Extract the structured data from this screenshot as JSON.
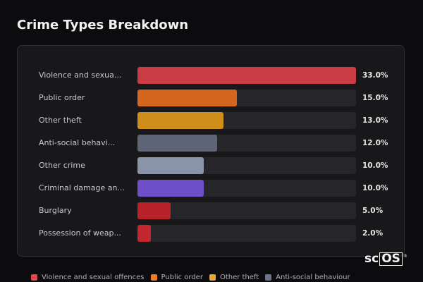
{
  "title": "Crime Types Breakdown",
  "logo_text": "scOS",
  "logo_mark": "®",
  "chart_data": {
    "type": "bar",
    "orientation": "horizontal",
    "title": "Crime Types Breakdown",
    "xlim": [
      0,
      33
    ],
    "categories": [
      "Violence and sexua...",
      "Public order",
      "Other theft",
      "Anti-social behavi...",
      "Other crime",
      "Criminal damage an...",
      "Burglary",
      "Possession of weap..."
    ],
    "values": [
      33.0,
      15.0,
      13.0,
      12.0,
      10.0,
      10.0,
      5.0,
      2.0
    ],
    "value_labels": [
      "33.0%",
      "15.0%",
      "13.0%",
      "12.0%",
      "10.0%",
      "10.0%",
      "5.0%",
      "2.0%"
    ],
    "colors": [
      "#c93c44",
      "#d4661e",
      "#cf8d1a",
      "#5d6577",
      "#8a94a8",
      "#6f4fc9",
      "#b8232b",
      "#c4262f"
    ],
    "legend": [
      {
        "label": "Violence and sexual offences",
        "color": "#e04848"
      },
      {
        "label": "Public order",
        "color": "#ef7b2c"
      },
      {
        "label": "Other theft",
        "color": "#eba72c"
      },
      {
        "label": "Anti-social behaviour",
        "color": "#6b7489"
      }
    ],
    "legend_position": "bottom"
  }
}
